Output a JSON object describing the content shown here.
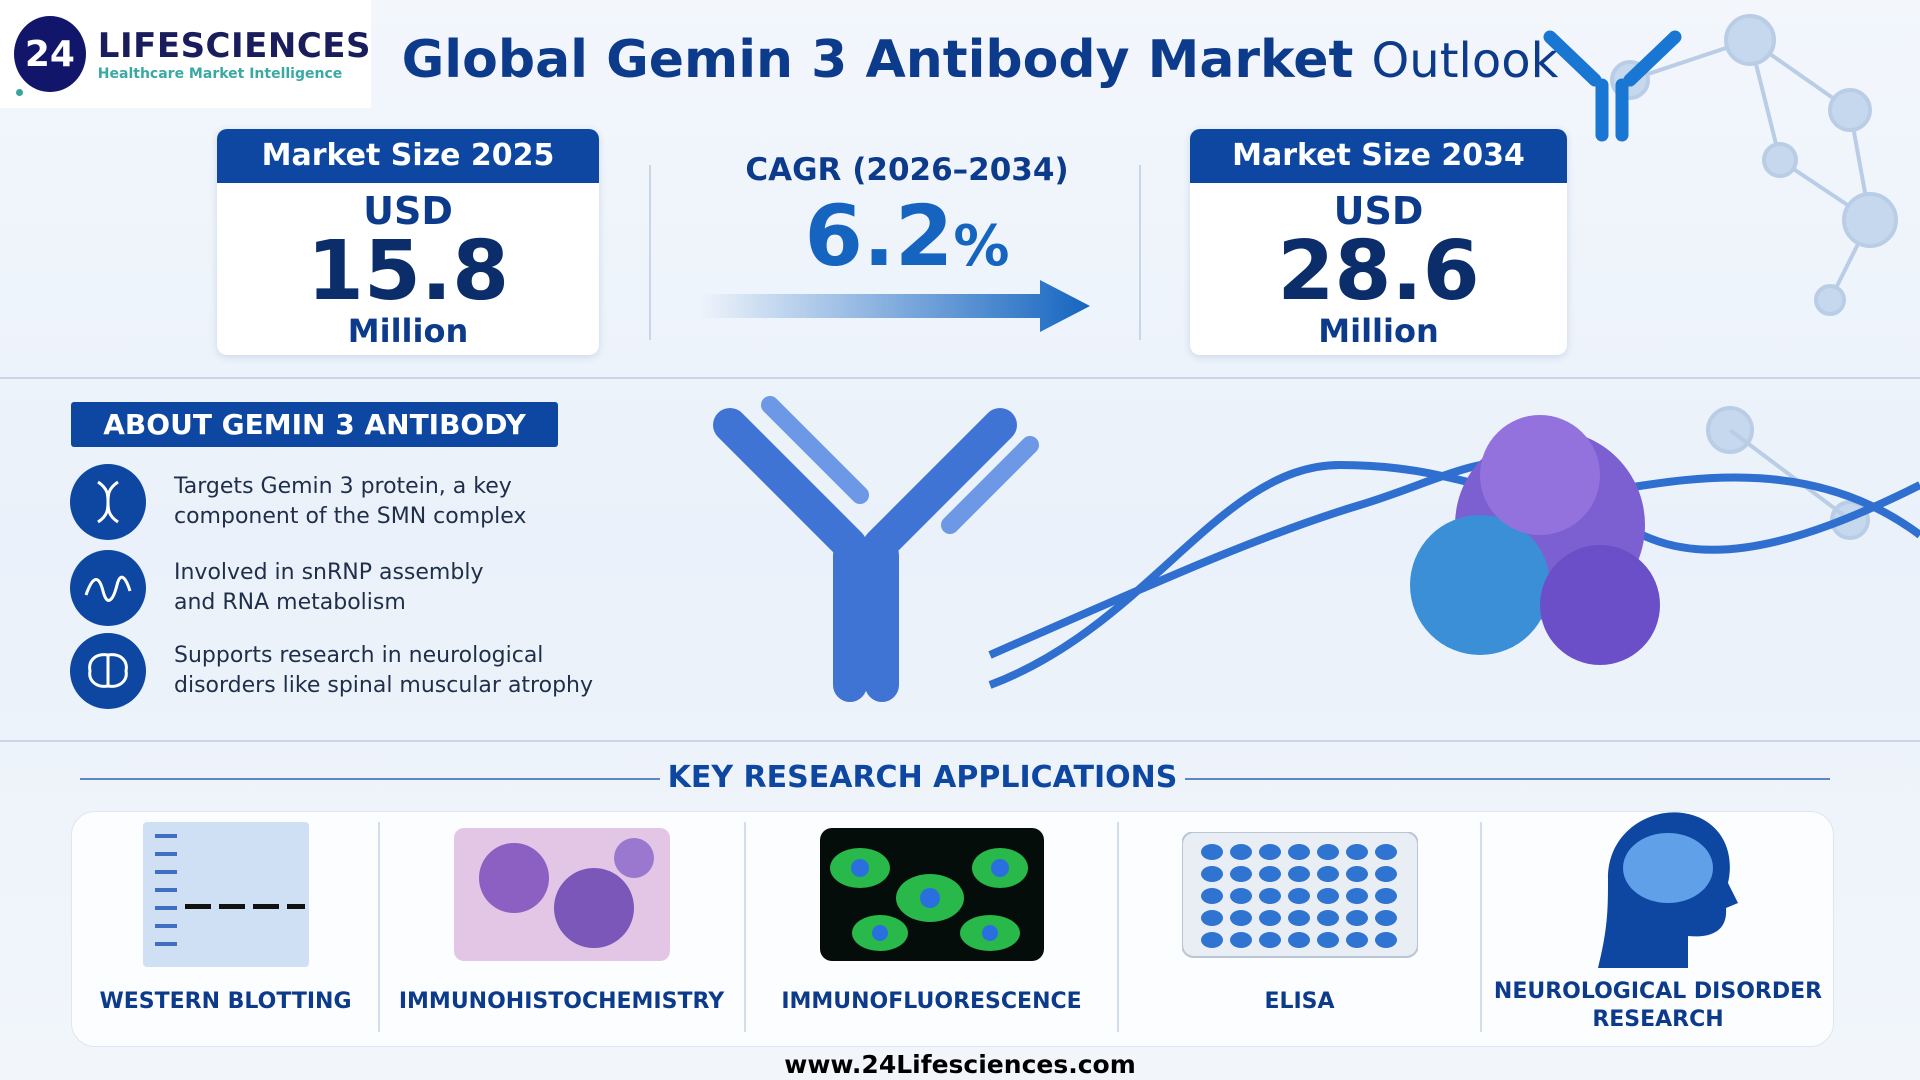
{
  "logo": {
    "mark": "24",
    "name": "LIFESCIENCES",
    "tagline": "Healthcare Market Intelligence"
  },
  "title": {
    "main": "Global Gemin 3 Antibody Market",
    "suffix": "Outlook"
  },
  "market_2025": {
    "header": "Market Size 2025",
    "currency": "USD",
    "value": "15.8",
    "unit": "Million"
  },
  "cagr": {
    "label": "CAGR (2026–2034)",
    "value": "6.2",
    "unit": "%"
  },
  "market_2034": {
    "header": "Market Size 2034",
    "currency": "USD",
    "value": "28.6",
    "unit": "Million"
  },
  "about": {
    "header": "ABOUT GEMIN 3 ANTIBODY",
    "items": [
      {
        "icon": "dna-icon",
        "line1": "Targets Gemin 3 protein, a key",
        "line2": "component of the SMN complex"
      },
      {
        "icon": "rna-wave-icon",
        "line1": "Involved in snRNP assembly",
        "line2": "and RNA metabolism"
      },
      {
        "icon": "brain-icon",
        "line1": "Supports research in neurological",
        "line2": "disorders like spinal muscular atrophy"
      }
    ]
  },
  "applications": {
    "header": "KEY RESEARCH APPLICATIONS",
    "items": [
      {
        "label": "WESTERN BLOTTING",
        "icon": "western-blot-gel-icon"
      },
      {
        "label": "IMMUNOHISTOCHEMISTRY",
        "icon": "tissue-stain-icon"
      },
      {
        "label": "IMMUNOFLUORESCENCE",
        "icon": "fluorescent-cells-icon"
      },
      {
        "label": "ELISA",
        "icon": "well-plate-icon"
      },
      {
        "label": "NEUROLOGICAL DISORDER",
        "label2": "RESEARCH",
        "icon": "head-brain-icon"
      }
    ]
  },
  "footer": {
    "url": "www.24Lifesciences.com"
  },
  "colors": {
    "primary": "#0d47a1",
    "title": "#0d3b8c",
    "accent": "#1565c0"
  }
}
